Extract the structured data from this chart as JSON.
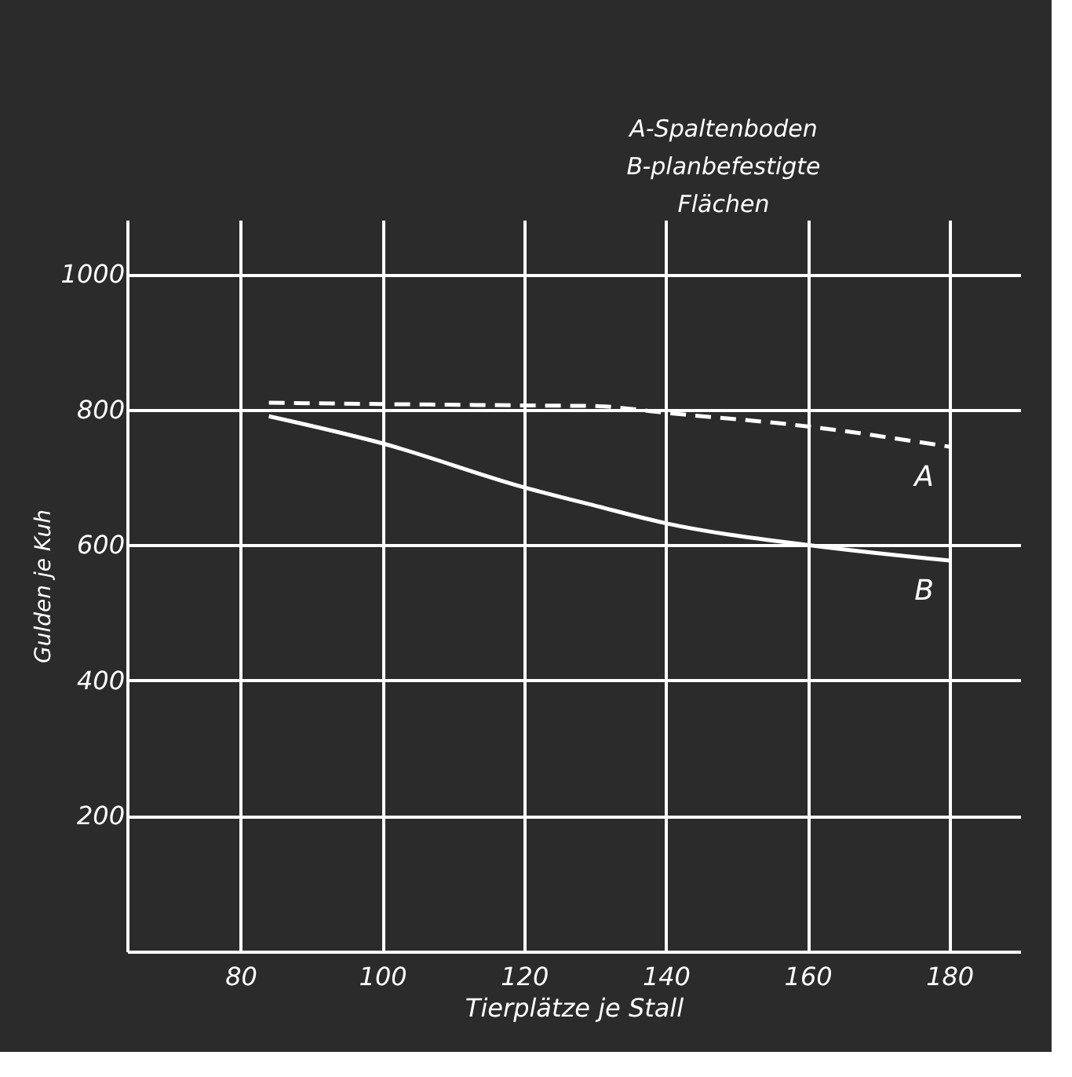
{
  "chart_data": {
    "type": "line",
    "xlabel": "Tierplätze je Stall",
    "ylabel": "Gulden je Kuh",
    "x": [
      84,
      100,
      120,
      130,
      140,
      160,
      180
    ],
    "series": [
      {
        "name": "A",
        "color": "#ffffff",
        "line_style": "dashed",
        "values": [
          810,
          808,
          806,
          805,
          795,
          775,
          745
        ]
      },
      {
        "name": "B",
        "color": "#ffffff",
        "line_style": "solid",
        "values": [
          790,
          750,
          685,
          658,
          632,
          600,
          577
        ]
      }
    ],
    "xlim": [
      64,
      190
    ],
    "ylim": [
      0,
      1080
    ],
    "xticks": [
      80,
      100,
      120,
      140,
      160,
      180
    ],
    "yticks": [
      200,
      400,
      600,
      800,
      1000
    ],
    "grid": true,
    "marker": "none",
    "annotations": [
      "A-Spaltenboden",
      "B-planbefestigte",
      "Flächen"
    ]
  }
}
